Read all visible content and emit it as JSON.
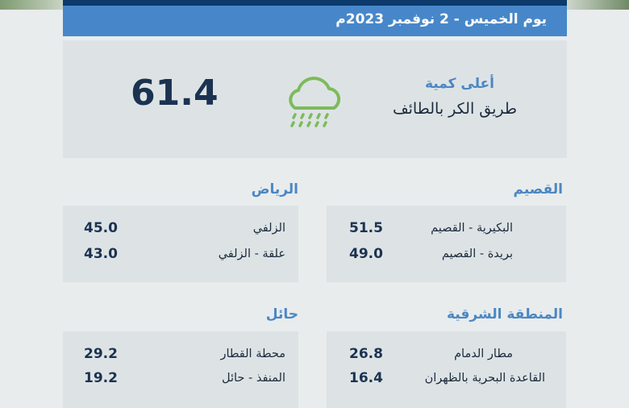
{
  "header": {
    "date": "يوم الخميس - 2 نوفمبر 2023م"
  },
  "highlight": {
    "label": "أعلى كمية",
    "place": "طريق الكر بالطائف",
    "value": "61.4",
    "icon": "rain-cloud-icon",
    "icon_color": "#7dbb5a"
  },
  "regions": [
    {
      "title": "القصيم",
      "rows": [
        {
          "name": "البكيرية - القصيم",
          "value": "51.5"
        },
        {
          "name": "بريدة - القصيم",
          "value": "49.0"
        }
      ]
    },
    {
      "title": "الرياض",
      "rows": [
        {
          "name": "الزلفي",
          "value": "45.0"
        },
        {
          "name": "علقة - الزلفي",
          "value": "43.0"
        }
      ]
    },
    {
      "title": "المنطقة الشرقية",
      "rows": [
        {
          "name": "مطار الدمام",
          "value": "26.8"
        },
        {
          "name": "القاعدة البحرية بالظهران",
          "value": "16.4"
        }
      ]
    },
    {
      "title": "حائل",
      "rows": [
        {
          "name": "محطة القطار",
          "value": "29.2"
        },
        {
          "name": "المنفذ - حائل",
          "value": "19.2"
        }
      ]
    }
  ]
}
